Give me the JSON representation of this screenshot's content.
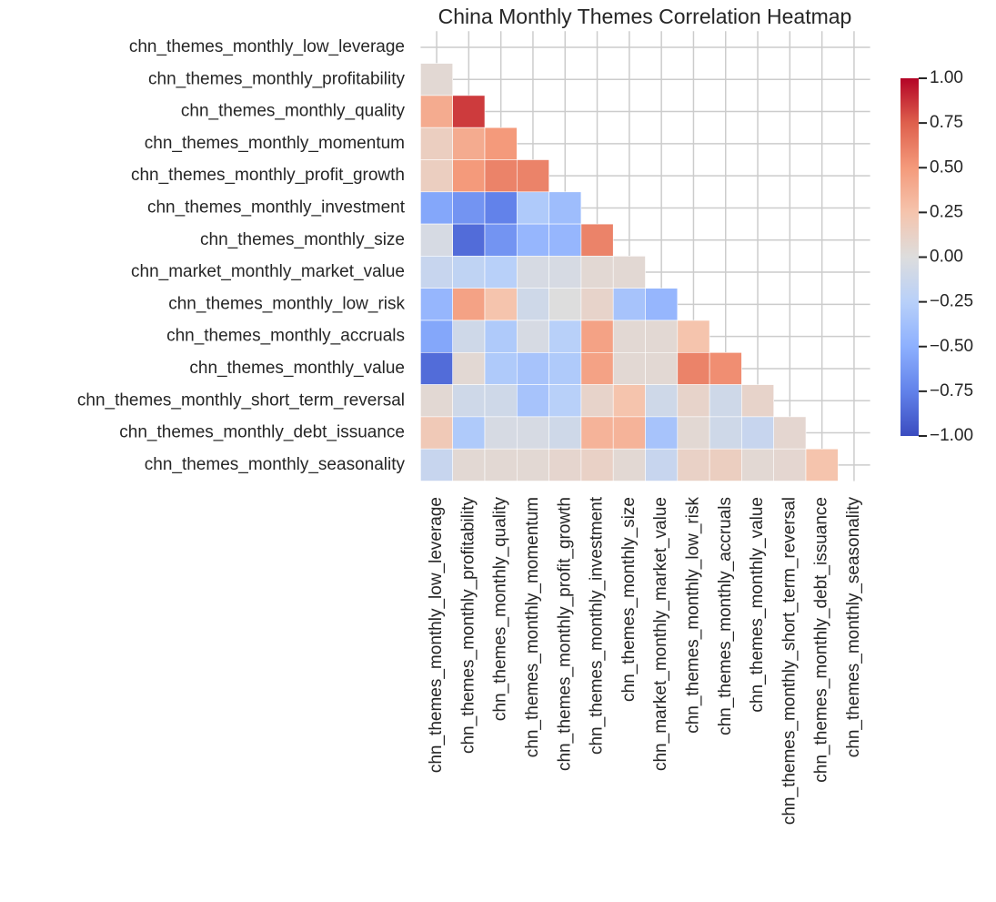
{
  "chart_data": {
    "type": "heatmap",
    "title": "China Monthly Themes Correlation Heatmap",
    "categories": [
      "chn_themes_monthly_low_leverage",
      "chn_themes_monthly_profitability",
      "chn_themes_monthly_quality",
      "chn_themes_monthly_momentum",
      "chn_themes_monthly_profit_growth",
      "chn_themes_monthly_investment",
      "chn_themes_monthly_size",
      "chn_market_monthly_market_value",
      "chn_themes_monthly_low_risk",
      "chn_themes_monthly_accruals",
      "chn_themes_monthly_value",
      "chn_themes_monthly_short_term_reversal",
      "chn_themes_monthly_debt_issuance",
      "chn_themes_monthly_seasonality"
    ],
    "values": [
      [
        null,
        null,
        null,
        null,
        null,
        null,
        null,
        null,
        null,
        null,
        null,
        null,
        null,
        null
      ],
      [
        0.05,
        null,
        null,
        null,
        null,
        null,
        null,
        null,
        null,
        null,
        null,
        null,
        null,
        null
      ],
      [
        0.4,
        0.85,
        null,
        null,
        null,
        null,
        null,
        null,
        null,
        null,
        null,
        null,
        null,
        null
      ],
      [
        0.15,
        0.4,
        0.5,
        null,
        null,
        null,
        null,
        null,
        null,
        null,
        null,
        null,
        null,
        null
      ],
      [
        0.15,
        0.5,
        0.6,
        0.6,
        null,
        null,
        null,
        null,
        null,
        null,
        null,
        null,
        null,
        null
      ],
      [
        -0.55,
        -0.65,
        -0.75,
        -0.3,
        -0.4,
        null,
        null,
        null,
        null,
        null,
        null,
        null,
        null,
        null
      ],
      [
        -0.05,
        -0.85,
        -0.65,
        -0.45,
        -0.45,
        0.6,
        null,
        null,
        null,
        null,
        null,
        null,
        null,
        null
      ],
      [
        -0.15,
        -0.2,
        -0.25,
        -0.05,
        -0.05,
        0.05,
        0.05,
        null,
        null,
        null,
        null,
        null,
        null,
        null
      ],
      [
        -0.45,
        0.45,
        0.25,
        -0.1,
        0.0,
        0.1,
        -0.35,
        -0.45,
        null,
        null,
        null,
        null,
        null,
        null
      ],
      [
        -0.55,
        -0.1,
        -0.3,
        -0.05,
        -0.25,
        0.45,
        0.05,
        0.05,
        0.25,
        null,
        null,
        null,
        null,
        null
      ],
      [
        -0.85,
        0.05,
        -0.3,
        -0.35,
        -0.3,
        0.45,
        0.05,
        0.05,
        0.6,
        0.55,
        null,
        null,
        null,
        null
      ],
      [
        0.05,
        -0.1,
        -0.1,
        -0.35,
        -0.25,
        0.1,
        0.25,
        -0.1,
        0.1,
        -0.1,
        0.1,
        null,
        null,
        null
      ],
      [
        0.2,
        -0.3,
        -0.05,
        -0.05,
        -0.1,
        0.35,
        0.35,
        -0.35,
        0.05,
        -0.1,
        -0.15,
        0.07,
        null,
        null
      ],
      [
        -0.15,
        0.05,
        0.05,
        0.05,
        0.08,
        0.12,
        0.05,
        -0.15,
        0.12,
        0.15,
        0.05,
        0.07,
        0.25,
        null
      ]
    ],
    "colormap": "coolwarm",
    "clim": [
      -1,
      1
    ],
    "cticks": [
      {
        "value": 1,
        "label": "1.00"
      },
      {
        "value": 0.75,
        "label": "0.75"
      },
      {
        "value": 0.5,
        "label": "0.50"
      },
      {
        "value": 0.25,
        "label": "0.25"
      },
      {
        "value": 0,
        "label": "0.00"
      },
      {
        "value": -0.25,
        "label": "−0.25"
      },
      {
        "value": -0.5,
        "label": "−0.50"
      },
      {
        "value": -0.75,
        "label": "−0.75"
      },
      {
        "value": -1,
        "label": "−1.00"
      }
    ],
    "grid": true
  }
}
